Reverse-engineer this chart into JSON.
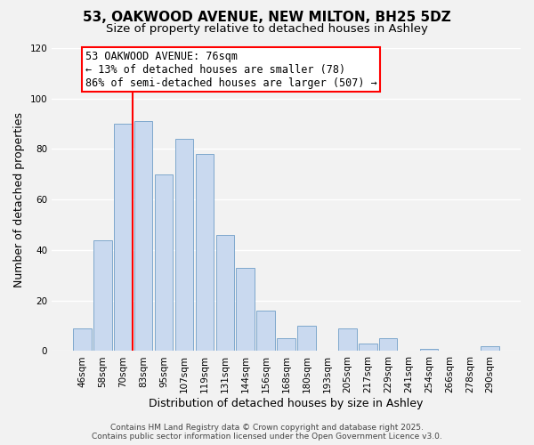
{
  "title": "53, OAKWOOD AVENUE, NEW MILTON, BH25 5DZ",
  "subtitle": "Size of property relative to detached houses in Ashley",
  "xlabel": "Distribution of detached houses by size in Ashley",
  "ylabel": "Number of detached properties",
  "bar_labels": [
    "46sqm",
    "58sqm",
    "70sqm",
    "83sqm",
    "95sqm",
    "107sqm",
    "119sqm",
    "131sqm",
    "144sqm",
    "156sqm",
    "168sqm",
    "180sqm",
    "193sqm",
    "205sqm",
    "217sqm",
    "229sqm",
    "241sqm",
    "254sqm",
    "266sqm",
    "278sqm",
    "290sqm"
  ],
  "bar_values": [
    9,
    44,
    90,
    91,
    70,
    84,
    78,
    46,
    33,
    16,
    5,
    10,
    0,
    9,
    3,
    5,
    0,
    1,
    0,
    0,
    2
  ],
  "bar_color": "#c9d9ef",
  "bar_edgecolor": "#7fa8cc",
  "ylim": [
    0,
    120
  ],
  "yticks": [
    0,
    20,
    40,
    60,
    80,
    100,
    120
  ],
  "property_line_label": "53 OAKWOOD AVENUE: 76sqm",
  "annotation_line1": "← 13% of detached houses are smaller (78)",
  "annotation_line2": "86% of semi-detached houses are larger (507) →",
  "footer_line1": "Contains HM Land Registry data © Crown copyright and database right 2025.",
  "footer_line2": "Contains public sector information licensed under the Open Government Licence v3.0.",
  "background_color": "#f2f2f2",
  "plot_bg_color": "#f2f2f2",
  "grid_color": "#ffffff",
  "title_fontsize": 11,
  "subtitle_fontsize": 9.5,
  "axis_label_fontsize": 9,
  "tick_fontsize": 7.5,
  "footer_fontsize": 6.5,
  "annot_fontsize": 8.5
}
